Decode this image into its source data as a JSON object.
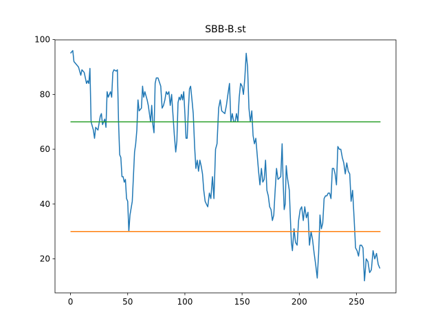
{
  "chart_data": {
    "type": "line",
    "title": "SBB-B.st",
    "xlim": [
      -13.55,
      284.55
    ],
    "ylim": [
      7.6,
      99.9
    ],
    "xticks": [
      0,
      50,
      100,
      150,
      200,
      250
    ],
    "yticks": [
      20,
      40,
      60,
      80,
      100
    ],
    "series": [
      {
        "color": "#1f77b4",
        "x": [
          0,
          2,
          3,
          5,
          7,
          9,
          10,
          12,
          14,
          15,
          16,
          17,
          18,
          20,
          21,
          22,
          24,
          26,
          27,
          28,
          30,
          31,
          32,
          33,
          35,
          36,
          37,
          38,
          40,
          41,
          42,
          43,
          44,
          45,
          46,
          47,
          48,
          49,
          50,
          51,
          52,
          54,
          56,
          57,
          58,
          59,
          60,
          62,
          63,
          64,
          65,
          67,
          68,
          69,
          70,
          71,
          72,
          73,
          74,
          75,
          76.5,
          78.9,
          80.1,
          81.3,
          82.5,
          83.7,
          84.8,
          86,
          87.2,
          88.4,
          90.8,
          92,
          93,
          94,
          95,
          96,
          97,
          98,
          99,
          100,
          101,
          102,
          103,
          104,
          105,
          106.2,
          107.3,
          108.5,
          109.6,
          110.8,
          111.9,
          113.1,
          114.2,
          115.4,
          116.5,
          117.7,
          118.8,
          120,
          121.4,
          122.7,
          124.1,
          125.4,
          126.8,
          128.1,
          129.5,
          130.9,
          132.2,
          134.9,
          136.3,
          137.6,
          139,
          140.2,
          141.4,
          142.7,
          143.9,
          145.1,
          146.3,
          147.5,
          148.7,
          150,
          151.2,
          152.4,
          153.6,
          154.8,
          156,
          157.2,
          158.5,
          159.6,
          160.8,
          162,
          163.2,
          164.4,
          165.6,
          166.9,
          168.1,
          169.3,
          170.5,
          171.7,
          172.9,
          174.1,
          175.3,
          176.5,
          177.7,
          178.9,
          180.1,
          181.4,
          183.8,
          185,
          185.9,
          186.8,
          187.7,
          188.6,
          189.5,
          191.3,
          192.2,
          193.1,
          194,
          195.4,
          196.7,
          198.1,
          199.4,
          200.8,
          202.1,
          203.5,
          204.8,
          206.2,
          207.6,
          208.9,
          210.3,
          211.6,
          213,
          214.3,
          215.7,
          216.9,
          218.1,
          219.3,
          220.5,
          221.7,
          222.9,
          224.1,
          225.3,
          226.5,
          227.7,
          228.9,
          230.1,
          231.3,
          232.5,
          233.7,
          235,
          236.3,
          237.6,
          238.9,
          240.2,
          241.5,
          242.8,
          244.1,
          245.3,
          246.6,
          247.9,
          249.2,
          250.5,
          251.8,
          253.1,
          254.4,
          255.7,
          257,
          258.5,
          260,
          261.5,
          263,
          264.5,
          266,
          267.5,
          269,
          270.5
        ],
        "values": [
          95,
          96,
          92,
          91,
          90,
          87,
          89,
          88,
          84,
          85,
          84,
          89.5,
          70,
          67,
          64,
          68,
          67,
          72,
          73,
          69,
          71,
          68,
          81,
          79,
          81,
          79,
          88,
          89,
          88.5,
          89,
          70,
          58,
          57,
          50,
          50,
          48,
          49,
          42,
          41,
          30,
          36,
          41,
          59,
          62,
          67,
          78,
          74,
          75,
          83,
          79,
          81,
          78,
          76,
          73,
          70,
          76,
          69,
          66,
          84,
          86,
          86,
          83,
          75,
          76,
          78,
          81,
          80,
          81,
          76,
          80,
          65,
          59,
          63,
          77,
          79,
          78,
          80,
          78,
          81,
          73,
          64,
          64,
          74,
          82,
          83,
          78,
          73,
          61,
          53,
          56,
          52,
          56,
          54,
          51,
          45,
          41,
          40,
          39,
          44,
          42,
          50,
          42,
          60,
          62,
          75,
          78,
          74,
          73,
          76,
          80,
          84,
          70,
          73,
          70,
          70,
          73,
          70,
          79,
          84,
          83,
          80,
          86,
          95,
          90,
          75,
          70,
          74,
          65,
          62,
          64,
          58,
          52,
          47,
          53,
          48,
          49,
          56,
          45,
          43,
          39,
          38,
          34,
          36,
          45,
          53,
          49,
          50,
          62,
          48,
          38,
          40,
          54,
          50,
          45,
          35,
          26,
          23,
          31,
          26,
          25,
          34,
          38,
          39,
          34,
          39,
          35,
          37,
          25,
          30,
          27,
          22,
          18,
          13,
          22,
          36,
          31,
          33,
          42,
          43,
          43,
          44,
          44,
          42,
          53,
          53,
          51,
          47,
          61,
          60,
          60,
          57,
          55,
          51,
          55,
          52,
          51,
          41,
          45,
          35,
          24,
          23,
          21,
          25,
          25,
          24,
          12,
          20,
          19,
          15,
          16,
          23,
          20,
          22,
          18,
          16.5
        ]
      },
      {
        "color": "#ff7f0e",
        "x": [
          0,
          271
        ],
        "values": [
          30,
          30
        ]
      },
      {
        "color": "#2ca02c",
        "x": [
          0,
          271
        ],
        "values": [
          70,
          70
        ]
      }
    ]
  }
}
